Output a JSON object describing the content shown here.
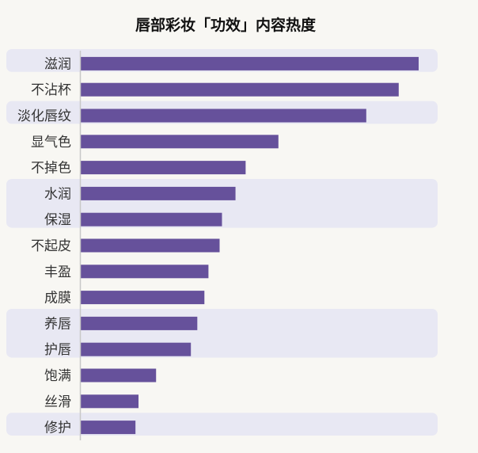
{
  "chart_data": {
    "type": "bar",
    "orientation": "horizontal",
    "title": "唇部彩妆「功效」内容热度",
    "xlabel": "",
    "ylabel": "",
    "categories": [
      "滋润",
      "不沾杯",
      "淡化唇纹",
      "显气色",
      "不掉色",
      "水润",
      "保湿",
      "不起皮",
      "丰盈",
      "成膜",
      "养唇",
      "护唇",
      "饱满",
      "丝滑",
      "修护"
    ],
    "values": [
      100,
      94.1,
      84.5,
      58.5,
      48.8,
      45.8,
      41.8,
      41.1,
      37.8,
      36.6,
      34.5,
      32.6,
      22.3,
      17.1,
      16.2
    ],
    "xlim": [
      0,
      100
    ],
    "grid": false,
    "legend": "none",
    "colors": {
      "bar": "#66519b",
      "band": "#e8e8f3",
      "axis": "#c8c8c8",
      "background": "#f8f7f3"
    }
  }
}
